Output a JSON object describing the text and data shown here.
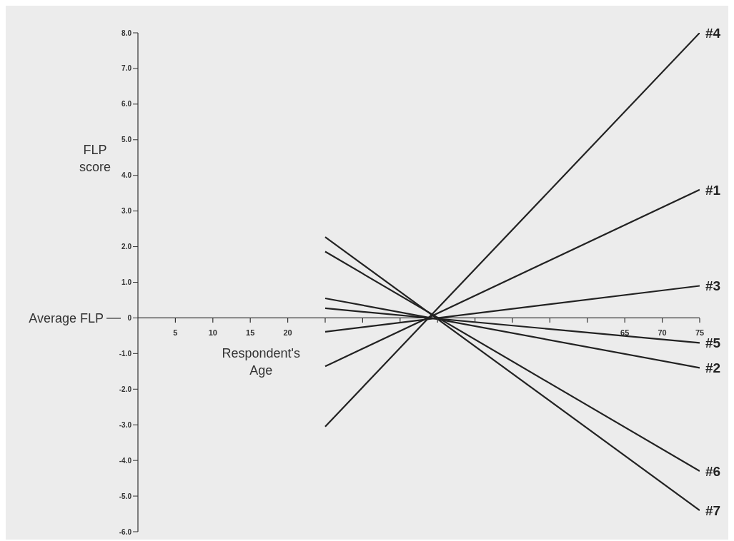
{
  "chart_data": {
    "type": "line",
    "ylabel": "FLP score",
    "xlabel": "Respondent's Age",
    "x": [
      25,
      75
    ],
    "series": [
      {
        "name": "#4",
        "color": "#222222",
        "values": [
          -3.05,
          8.0
        ]
      },
      {
        "name": "#1",
        "color": "#222222",
        "values": [
          -1.36,
          3.6
        ]
      },
      {
        "name": "#3",
        "color": "#222222",
        "values": [
          -0.39,
          0.9
        ]
      },
      {
        "name": "#5",
        "color": "#222222",
        "values": [
          0.27,
          -0.7
        ]
      },
      {
        "name": "#2",
        "color": "#222222",
        "values": [
          0.55,
          -1.4
        ]
      },
      {
        "name": "#6",
        "color": "#222222",
        "values": [
          1.86,
          -4.3
        ]
      },
      {
        "name": "#7",
        "color": "#222222",
        "values": [
          2.27,
          -5.4
        ]
      }
    ],
    "xlim": [
      0,
      75
    ],
    "xticks": [
      5,
      10,
      15,
      20,
      {
        "value": 25,
        "label": null
      },
      {
        "value": 30,
        "label": null
      },
      {
        "value": 35,
        "label": null
      },
      {
        "value": 40,
        "label": null
      },
      {
        "value": 45,
        "label": null
      },
      {
        "value": 50,
        "label": null
      },
      {
        "value": 55,
        "label": null
      },
      {
        "value": 60,
        "label": null
      },
      65,
      70,
      75
    ],
    "ylim": [
      -6,
      8
    ],
    "yticks": [
      {
        "value": 8,
        "label": "8.0"
      },
      {
        "value": 7,
        "label": "7.0"
      },
      {
        "value": 6,
        "label": "6.0"
      },
      {
        "value": 5,
        "label": "5.0"
      },
      {
        "value": 4,
        "label": "4.0"
      },
      {
        "value": 3,
        "label": "3.0"
      },
      {
        "value": 2,
        "label": "2.0"
      },
      {
        "value": 1,
        "label": "1.0"
      },
      0,
      {
        "value": -1,
        "label": "-1.0"
      },
      {
        "value": -2,
        "label": "-2.0"
      },
      {
        "value": -3,
        "label": "-3.0"
      },
      {
        "value": -4,
        "label": "-4.0"
      },
      {
        "value": -5,
        "label": "-5.0"
      },
      {
        "value": -6,
        "label": "-6.0"
      }
    ],
    "ref_lines": [
      {
        "axis": "y",
        "value": 0,
        "label": "Average FLP"
      }
    ],
    "grid": false,
    "marker": "none",
    "line_style": "solid"
  }
}
